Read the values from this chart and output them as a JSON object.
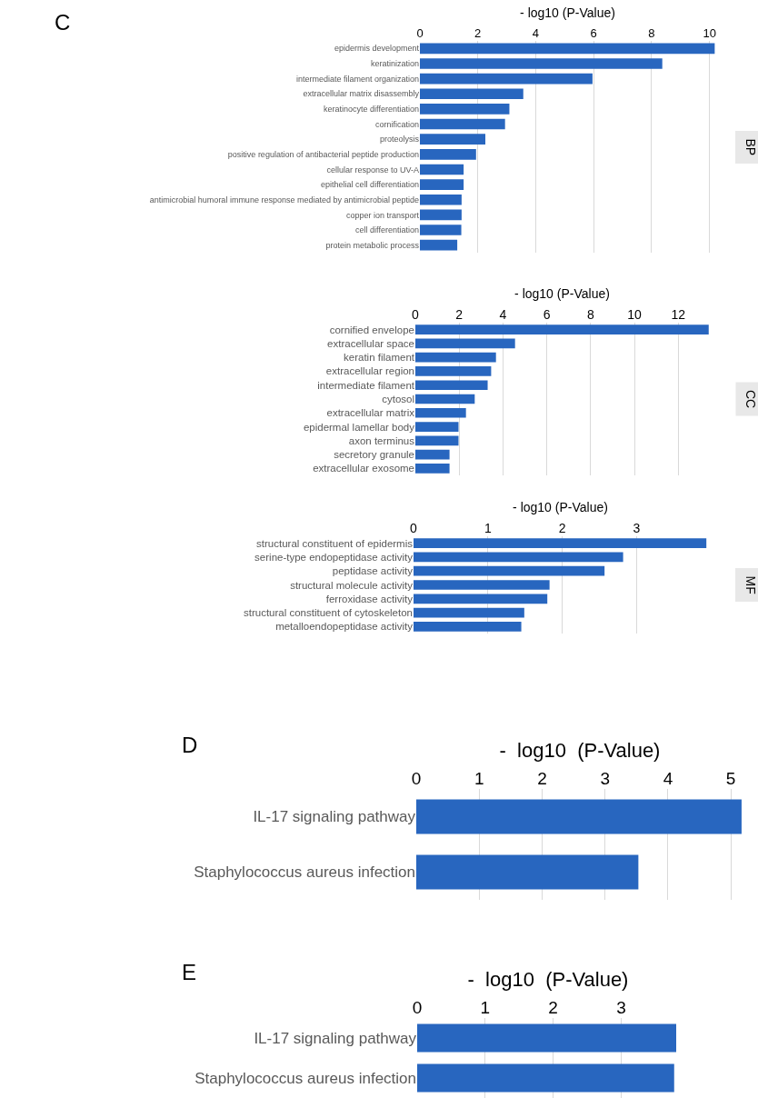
{
  "chart_data": [
    {
      "type": "bar",
      "orientation": "horizontal",
      "title": "C",
      "xlabel": "- log10 (P-Value)",
      "annotations": [
        "BP"
      ],
      "grid": "x",
      "color": "#2866bf",
      "categories": [
        "epidermis development",
        "keratinization",
        "intermediate filament organization",
        "extracellular matrix disassembly",
        "keratinocyte differentiation",
        "cornification",
        "proteolysis",
        "positive regulation of antibacterial peptide production",
        "cellular response to UV-A",
        "epithelial cell differentiation",
        "antimicrobial humoral immune response mediated by antimicrobial peptide",
        "copper ion transport",
        "cell differentiation",
        "protein metabolic process"
      ],
      "values": [
        10.18,
        8.37,
        5.96,
        3.57,
        3.09,
        2.94,
        2.26,
        1.94,
        1.51,
        1.51,
        1.44,
        1.44,
        1.43,
        1.29
      ],
      "xlim": [
        0,
        10.2
      ],
      "xticks": [
        0,
        2,
        4,
        6,
        8,
        10
      ]
    },
    {
      "type": "bar",
      "orientation": "horizontal",
      "xlabel": "- log10 (P-Value)",
      "annotations": [
        "CC"
      ],
      "grid": "x",
      "color": "#2866bf",
      "categories": [
        "cornified envelope",
        "extracellular space",
        "keratin filament",
        "extracellular region",
        "intermediate filament",
        "cytosol",
        "extracellular matrix",
        "epidermal lamellar body",
        "axon terminus",
        "secretory granule",
        "extracellular exosome"
      ],
      "values": [
        13.39,
        4.55,
        3.68,
        3.46,
        3.3,
        2.71,
        2.31,
        1.97,
        1.97,
        1.56,
        1.56
      ],
      "xlim": [
        0,
        13.4
      ],
      "xticks": [
        0,
        2,
        4,
        6,
        8,
        10,
        12
      ]
    },
    {
      "type": "bar",
      "orientation": "horizontal",
      "xlabel": "- log10 (P-Value)",
      "annotations": [
        "MF"
      ],
      "grid": "x",
      "color": "#2866bf",
      "categories": [
        "structural constituent of epidermis",
        "serine-type endopeptidase activity",
        "peptidase activity",
        "structural molecule activity",
        "ferroxidase activity",
        "structural constituent of cytoskeleton",
        "metalloendopeptidase activity"
      ],
      "values": [
        3.94,
        2.82,
        2.57,
        1.83,
        1.8,
        1.49,
        1.45
      ],
      "xlim": [
        0,
        3.95
      ],
      "xticks": [
        0,
        1,
        2,
        3
      ]
    },
    {
      "type": "bar",
      "orientation": "horizontal",
      "title": "D",
      "xlabel": "-  log10  (P-Value)",
      "grid": "x",
      "color": "#2866bf",
      "categories": [
        "IL-17 signaling pathway",
        "Staphylococcus aureus infection"
      ],
      "values": [
        5.17,
        3.53
      ],
      "xlim": [
        0,
        5.2
      ],
      "xticks": [
        0,
        1,
        2,
        3,
        4,
        5
      ]
    },
    {
      "type": "bar",
      "orientation": "horizontal",
      "title": "E",
      "xlabel": "-  log10  (P-Value)",
      "grid": "x",
      "color": "#2866bf",
      "categories": [
        "IL-17 signaling pathway",
        "Staphylococcus aureus infection"
      ],
      "values": [
        3.81,
        3.78
      ],
      "xlim": [
        0,
        3.85
      ],
      "xticks": [
        0,
        1,
        2,
        3
      ]
    }
  ]
}
